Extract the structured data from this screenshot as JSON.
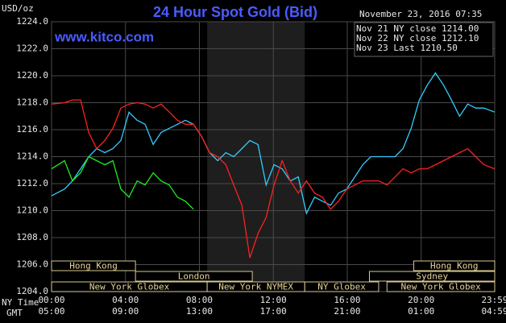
{
  "chart_data": {
    "type": "line",
    "title": "24 Hour Spot Gold (Bid)",
    "subtitle": "www.kitco.com",
    "timestamp": "November 23, 2016 07:35",
    "y_label": "USD/oz",
    "x_axis_labels": [
      "NY Time",
      "GMT"
    ],
    "legend": "upper right",
    "grid": true,
    "shaded_xrange": [
      8.42,
      13.7
    ],
    "xlim": [
      0,
      23.98
    ],
    "ylim": [
      1204,
      1224
    ],
    "yticks": [
      {
        "value": 1204,
        "label": "1204.0"
      },
      {
        "value": 1206,
        "label": "1206.0"
      },
      {
        "value": 1208,
        "label": "1208.0"
      },
      {
        "value": 1210,
        "label": "1210.0"
      },
      {
        "value": 1212,
        "label": "1212.0"
      },
      {
        "value": 1214,
        "label": "1214.0"
      },
      {
        "value": 1216,
        "label": "1216.0"
      },
      {
        "value": 1218,
        "label": "1218.0"
      },
      {
        "value": 1220,
        "label": "1220.0"
      },
      {
        "value": 1222,
        "label": "1222.0"
      },
      {
        "value": 1224,
        "label": "1224.0"
      }
    ],
    "xticks": [
      {
        "value": 0,
        "label": "00:00"
      },
      {
        "value": 4,
        "label": "04:00"
      },
      {
        "value": 8,
        "label": "08:00"
      },
      {
        "value": 12,
        "label": "12:00"
      },
      {
        "value": 16,
        "label": "16:00"
      },
      {
        "value": 20,
        "label": "20:00"
      },
      {
        "value": 23.98,
        "label": "23:59"
      }
    ],
    "x2ticks": [
      {
        "value": 0,
        "label": "05:00"
      },
      {
        "value": 4,
        "label": "09:00"
      },
      {
        "value": 8,
        "label": "13:00"
      },
      {
        "value": 12,
        "label": "17:00"
      },
      {
        "value": 16,
        "label": "21:00"
      },
      {
        "value": 20,
        "label": "01:00"
      },
      {
        "value": 23.98,
        "label": "04:59"
      }
    ],
    "sessions": [
      [
        {
          "label": "Hong Kong",
          "start": 0,
          "end": 4.54
        },
        {
          "label": "Hong Kong",
          "start": 19.6,
          "end": 23.98
        }
      ],
      [
        {
          "label": "London",
          "start": 4.54,
          "end": 10.86
        },
        {
          "label": "Sydney",
          "start": 17.2,
          "end": 23.98
        }
      ],
      [
        {
          "label": "New York Globex",
          "start": 0,
          "end": 8.42
        },
        {
          "label": "New York NYMEX",
          "start": 8.42,
          "end": 13.7
        },
        {
          "label": "NY Globex",
          "start": 13.7,
          "end": 17.7
        },
        {
          "label": "New York Globex",
          "start": 18.15,
          "end": 23.98
        }
      ]
    ],
    "x": [
      0,
      0.7,
      1.13,
      1.57,
      2.01,
      2.44,
      2.88,
      3.32,
      3.75,
      4.19,
      4.63,
      5.06,
      5.5,
      5.93,
      6.37,
      6.81,
      7.24,
      7.68,
      8.12,
      8.55,
      8.99,
      9.43,
      9.86,
      10.3,
      10.73,
      11.17,
      11.61,
      12.04,
      12.48,
      12.92,
      13.35,
      13.79,
      14.23,
      14.66,
      15.1,
      15.53,
      15.97,
      16.41,
      16.84,
      17.28,
      17.72,
      18.15,
      18.59,
      19.02,
      19.46,
      19.9,
      20.33,
      20.77,
      21.21,
      21.64,
      22.08,
      22.52,
      22.95,
      23.39,
      23.98
    ],
    "series": [
      {
        "name": "Nov 21 NY close 1214.00",
        "color": "#33ccff",
        "values": [
          1211.1,
          1211.6,
          1212.2,
          1213.1,
          1214.0,
          1214.6,
          1214.3,
          1214.6,
          1215.2,
          1217.3,
          1216.7,
          1216.4,
          1214.9,
          1215.8,
          1216.1,
          1216.4,
          1216.7,
          1216.4,
          1215.5,
          1214.3,
          1213.7,
          1214.3,
          1214.0,
          1214.6,
          1215.2,
          1214.9,
          1211.9,
          1213.4,
          1213.1,
          1212.2,
          1212.5,
          1209.8,
          1211.0,
          1210.7,
          1210.4,
          1211.3,
          1211.6,
          1212.5,
          1213.4,
          1214.0,
          1214.0,
          1214.0,
          1214.0,
          1214.6,
          1216.1,
          1218.2,
          1219.3,
          1220.2,
          1219.3,
          1218.2,
          1217.0,
          1217.9,
          1217.6,
          1217.6,
          1217.3
        ]
      },
      {
        "name": "Nov 22 NY close 1212.10",
        "color": "#ff2020",
        "values": [
          1217.9,
          1218.0,
          1218.2,
          1218.2,
          1215.8,
          1214.6,
          1215.2,
          1216.1,
          1217.6,
          1217.9,
          1218.0,
          1217.9,
          1217.6,
          1217.9,
          1217.3,
          1216.7,
          1216.4,
          1216.4,
          1215.5,
          1214.3,
          1214.0,
          1213.4,
          1211.9,
          1210.4,
          1206.5,
          1208.3,
          1209.5,
          1211.9,
          1213.7,
          1212.2,
          1211.3,
          1212.2,
          1211.3,
          1211.0,
          1210.1,
          1210.7,
          1211.6,
          1211.9,
          1212.2,
          1212.2,
          1212.2,
          1211.9,
          1212.5,
          1213.1,
          1212.8,
          1213.1,
          1213.1,
          1213.4,
          1213.7,
          1214.0,
          1214.3,
          1214.6,
          1214.0,
          1213.4,
          1213.1
        ]
      },
      {
        "name": "Nov 23 Last 1210.50",
        "color": "#22ee22",
        "values": [
          1213.1,
          1213.7,
          1212.2,
          1212.8,
          1214.0,
          1213.7,
          1213.4,
          1213.7,
          1211.6,
          1211.0,
          1212.2,
          1211.9,
          1212.8,
          1212.2,
          1211.9,
          1211.0,
          1210.7,
          1210.1,
          null,
          null,
          null,
          null,
          null,
          null,
          null,
          null,
          null,
          null,
          null,
          null,
          null,
          null,
          null,
          null,
          null,
          null,
          null,
          null,
          null,
          null,
          null,
          null,
          null,
          null,
          null,
          null,
          null,
          null,
          null,
          null,
          null,
          null,
          null,
          null,
          null
        ]
      }
    ]
  }
}
